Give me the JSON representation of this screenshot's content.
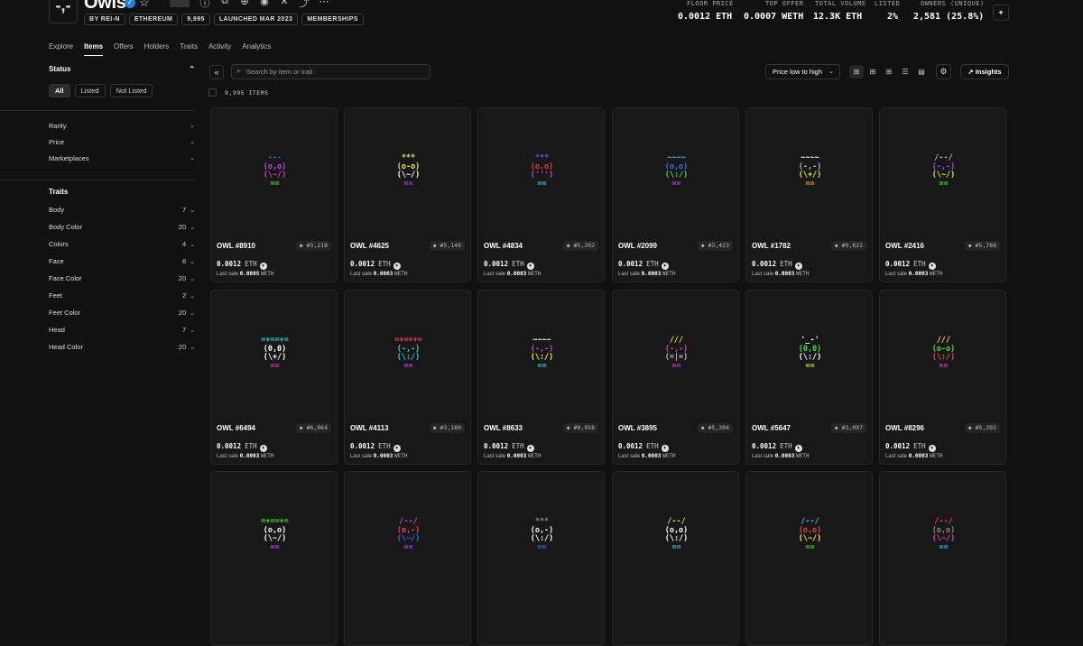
{
  "header": {
    "logo_text": "-,-",
    "title": "Owls",
    "chips": [
      "BY REI-N",
      "ETHEREUM",
      "9,995",
      "LAUNCHED MAR 2023",
      "MEMBERSHIPS"
    ],
    "stats": [
      {
        "label": "FLOOR PRICE",
        "value": "0.0012 ETH"
      },
      {
        "label": "TOP OFFER",
        "value": "0.0007 WETH"
      },
      {
        "label": "TOTAL VOLUME",
        "value": "12.3K ETH"
      },
      {
        "label": "LISTED",
        "value": "2%"
      },
      {
        "label": "OWNERS (UNIQUE)",
        "value": "2,581 (25.8%)"
      }
    ]
  },
  "tabs": [
    "Explore",
    "Items",
    "Offers",
    "Holders",
    "Traits",
    "Activity",
    "Analytics"
  ],
  "sidebar": {
    "status_label": "Status",
    "status_options": [
      "All",
      "Listed",
      "Not Listed"
    ],
    "filters": [
      "Rarity",
      "Price",
      "Marketplaces"
    ],
    "traits_label": "Traits",
    "traits": [
      {
        "name": "Body",
        "count": "7"
      },
      {
        "name": "Body Color",
        "count": "20"
      },
      {
        "name": "Colors",
        "count": "4"
      },
      {
        "name": "Face",
        "count": "6"
      },
      {
        "name": "Face Color",
        "count": "20"
      },
      {
        "name": "Feet",
        "count": "2"
      },
      {
        "name": "Feet Color",
        "count": "20"
      },
      {
        "name": "Head",
        "count": "7"
      },
      {
        "name": "Head Color",
        "count": "20"
      }
    ]
  },
  "toolbar": {
    "search_placeholder": "Search by item or trait",
    "sort_label": "Price low to high",
    "insights_label": "Insights",
    "items_count": "9,995 ITEMS"
  },
  "colors": {
    "accent_verified": "#2081e2",
    "background": "#111111",
    "card": "#181818"
  },
  "items": [
    {
      "name": "OWL #8910",
      "rank": "#3,218",
      "price": "0.0012",
      "unit": "ETH",
      "last_label": "Last sale",
      "last": "0.0005",
      "last_unit": "WETH",
      "art": [
        {
          "t": "---",
          "c": "#3b6cf2"
        },
        {
          "t": "(o,o)",
          "c": "#c040f0"
        },
        {
          "t": "(\\~/)",
          "c": "#e040c0"
        },
        {
          "t": "==",
          "c": "#40e040"
        }
      ]
    },
    {
      "name": "OWL #4625",
      "rank": "#5,149",
      "price": "0.0012",
      "unit": "ETH",
      "last_label": "Last sale",
      "last": "0.0003",
      "last_unit": "WETH",
      "art": [
        {
          "t": "***",
          "c": "#f0e040"
        },
        {
          "t": "(o-o)",
          "c": "#f0f040"
        },
        {
          "t": "(\\~/)",
          "c": "#ffffff"
        },
        {
          "t": "==",
          "c": "#a040f0"
        }
      ]
    },
    {
      "name": "OWL #4834",
      "rank": "#5,392",
      "price": "0.0012",
      "unit": "ETH",
      "last_label": "Last sale",
      "last": "0.0003",
      "last_unit": "WETH",
      "art": [
        {
          "t": "***",
          "c": "#3b6cf2"
        },
        {
          "t": "(o,o)",
          "c": "#e04040"
        },
        {
          "t": "(''')",
          "c": "#e040c0"
        },
        {
          "t": "==",
          "c": "#40d0e0"
        }
      ]
    },
    {
      "name": "OWL #2099",
      "rank": "#3,423",
      "price": "0.0012",
      "unit": "ETH",
      "last_label": "Last sale",
      "last": "0.0003",
      "last_unit": "WETH",
      "art": [
        {
          "t": "~~~~",
          "c": "#40c0f0"
        },
        {
          "t": "(o,o)",
          "c": "#3b6cf2"
        },
        {
          "t": "(\\:/)",
          "c": "#40e040"
        },
        {
          "t": "==",
          "c": "#c040f0"
        }
      ]
    },
    {
      "name": "OWL #1782",
      "rank": "#9,822",
      "price": "0.0012",
      "unit": "ETH",
      "last_label": "Last sale",
      "last": "0.0003",
      "last_unit": "WETH",
      "art": [
        {
          "t": "~~~~",
          "c": "#ffffff"
        },
        {
          "t": "(-,-)",
          "c": "#bbbbbb"
        },
        {
          "t": "(\\+/)",
          "c": "#f0e040"
        },
        {
          "t": "==",
          "c": "#f0a040"
        }
      ]
    },
    {
      "name": "OWL #2416",
      "rank": "#5,788",
      "price": "0.0012",
      "unit": "ETH",
      "last_label": "Last sale",
      "last": "0.0003",
      "last_unit": "WETH",
      "art": [
        {
          "t": "/--/",
          "c": "#bbbbbb"
        },
        {
          "t": "(-,-)",
          "c": "#c040f0"
        },
        {
          "t": "(\\~/)",
          "c": "#d0f040"
        },
        {
          "t": "==",
          "c": "#40e040"
        }
      ]
    },
    {
      "name": "OWL #6494",
      "rank": "#6,064",
      "price": "0.0012",
      "unit": "ETH",
      "last_label": "Last sale",
      "last": "0.0003",
      "last_unit": "WETH",
      "art": [
        {
          "t": "=+==+=",
          "c": "#40d0e0"
        },
        {
          "t": "(0,0)",
          "c": "#ffffff"
        },
        {
          "t": "(\\+/)",
          "c": "#ffffff"
        },
        {
          "t": "==",
          "c": "#e040c0"
        }
      ]
    },
    {
      "name": "OWL #4113",
      "rank": "#3,180",
      "price": "0.0012",
      "unit": "ETH",
      "last_label": "Last sale",
      "last": "0.0003",
      "last_unit": "WETH",
      "art": [
        {
          "t": "=+==+=",
          "c": "#f04060"
        },
        {
          "t": "(-,-)",
          "c": "#40d0e0"
        },
        {
          "t": "(\\:/)",
          "c": "#40d0e0"
        },
        {
          "t": "==",
          "c": "#c040f0"
        }
      ]
    },
    {
      "name": "OWL #8633",
      "rank": "#9,958",
      "price": "0.0012",
      "unit": "ETH",
      "last_label": "Last sale",
      "last": "0.0003",
      "last_unit": "WETH",
      "art": [
        {
          "t": "~~~~",
          "c": "#ffffff"
        },
        {
          "t": "(-,-)",
          "c": "#c040f0"
        },
        {
          "t": "(\\:/)",
          "c": "#f0f040"
        },
        {
          "t": "==",
          "c": "#40d0e0"
        }
      ]
    },
    {
      "name": "OWL #3895",
      "rank": "#5,394",
      "price": "0.0012",
      "unit": "ETH",
      "last_label": "Last sale",
      "last": "0.0003",
      "last_unit": "WETH",
      "art": [
        {
          "t": "///",
          "c": "#f0e040"
        },
        {
          "t": "(-,-)",
          "c": "#e040c0"
        },
        {
          "t": "(=|=)",
          "c": "#bbbbbb"
        },
        {
          "t": "==",
          "c": "#c040f0"
        }
      ]
    },
    {
      "name": "OWL #5647",
      "rank": "#3,097",
      "price": "0.0012",
      "unit": "ETH",
      "last_label": "Last sale",
      "last": "0.0003",
      "last_unit": "WETH",
      "art": [
        {
          "t": "'_-'",
          "c": "#ffffff"
        },
        {
          "t": "(0,0)",
          "c": "#40e040"
        },
        {
          "t": "(\\:/)",
          "c": "#ffffff"
        },
        {
          "t": "==",
          "c": "#f0e040"
        }
      ]
    },
    {
      "name": "OWL #8296",
      "rank": "#5,392",
      "price": "0.0012",
      "unit": "ETH",
      "last_label": "Last sale",
      "last": "0.0003",
      "last_unit": "WETH",
      "art": [
        {
          "t": "///",
          "c": "#f0e040"
        },
        {
          "t": "(o-o)",
          "c": "#40e040"
        },
        {
          "t": "(\\:/)",
          "c": "#f04060"
        },
        {
          "t": "==",
          "c": "#e040c0"
        }
      ]
    },
    {
      "name": "",
      "rank": "",
      "price": "",
      "unit": "",
      "last_label": "",
      "last": "",
      "last_unit": "",
      "art": [
        {
          "t": "=+==+=",
          "c": "#40e040"
        },
        {
          "t": "(o,o)",
          "c": "#ffffff"
        },
        {
          "t": "(\\~/)",
          "c": "#ffffff"
        },
        {
          "t": "==",
          "c": "#c040f0"
        }
      ]
    },
    {
      "name": "",
      "rank": "",
      "price": "",
      "unit": "",
      "last_label": "",
      "last": "",
      "last_unit": "",
      "art": [
        {
          "t": "/--/",
          "c": "#c040f0"
        },
        {
          "t": "(o,-)",
          "c": "#f04060"
        },
        {
          "t": "(\\~/)",
          "c": "#3b6cf2"
        },
        {
          "t": "==",
          "c": "#c040f0"
        }
      ]
    },
    {
      "name": "",
      "rank": "",
      "price": "",
      "unit": "",
      "last_label": "",
      "last": "",
      "last_unit": "",
      "art": [
        {
          "t": "***",
          "c": "#888888"
        },
        {
          "t": "(o,-)",
          "c": "#ffffff"
        },
        {
          "t": "(\\:/)",
          "c": "#ffffff"
        },
        {
          "t": "==",
          "c": "#3b6cf2"
        }
      ]
    },
    {
      "name": "",
      "rank": "",
      "price": "",
      "unit": "",
      "last_label": "",
      "last": "",
      "last_unit": "",
      "art": [
        {
          "t": "/--/",
          "c": "#f0e040"
        },
        {
          "t": "(o,o)",
          "c": "#ffffff"
        },
        {
          "t": "(\\:/)",
          "c": "#ffffff"
        },
        {
          "t": "==",
          "c": "#40d0e0"
        }
      ]
    },
    {
      "name": "",
      "rank": "",
      "price": "",
      "unit": "",
      "last_label": "",
      "last": "",
      "last_unit": "",
      "art": [
        {
          "t": "/--/",
          "c": "#40c0f0"
        },
        {
          "t": "(o,o)",
          "c": "#f04060"
        },
        {
          "t": "(\\~/)",
          "c": "#f0f040"
        },
        {
          "t": "==",
          "c": "#40e040"
        }
      ]
    },
    {
      "name": "",
      "rank": "",
      "price": "",
      "unit": "",
      "last_label": "",
      "last": "",
      "last_unit": "",
      "art": [
        {
          "t": "/--/",
          "c": "#f04060"
        },
        {
          "t": "(o,o)",
          "c": "#888888"
        },
        {
          "t": "(\\~/)",
          "c": "#e040c0"
        },
        {
          "t": "==",
          "c": "#40c0f0"
        }
      ]
    }
  ]
}
